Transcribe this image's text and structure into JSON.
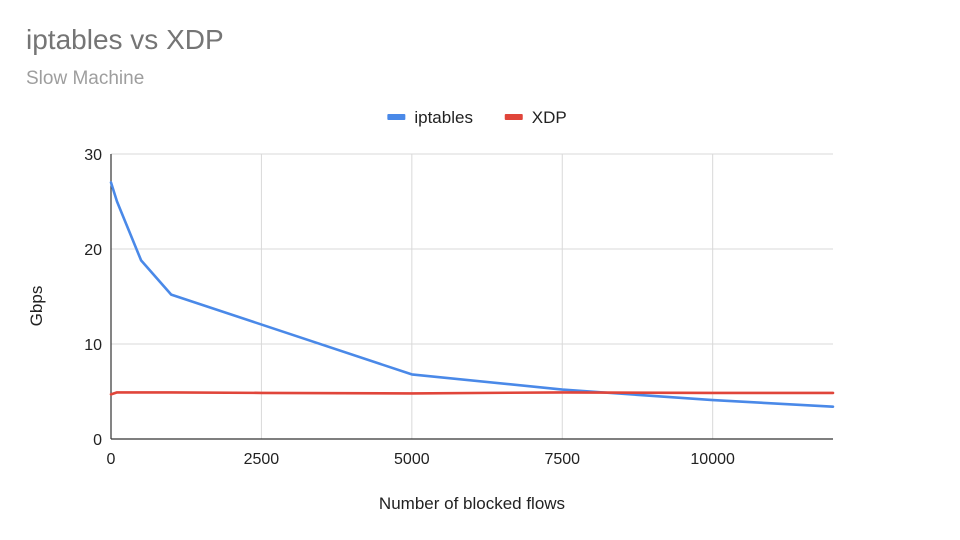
{
  "chart_data": {
    "type": "line",
    "title": "iptables vs XDP",
    "subtitle": "Slow Machine",
    "xlabel": "Number of blocked flows",
    "ylabel": "Gbps",
    "xlim": [
      0,
      12000
    ],
    "ylim": [
      0,
      30
    ],
    "xticks": [
      0,
      2500,
      5000,
      7500,
      10000
    ],
    "yticks": [
      0,
      10,
      20,
      30
    ],
    "grid": true,
    "legend": "top-center",
    "series": [
      {
        "name": "iptables",
        "color": "#4a89e8",
        "x": [
          0,
          100,
          500,
          1000,
          5000,
          7500,
          10000,
          12000
        ],
        "y": [
          27,
          25,
          18.8,
          15.2,
          6.8,
          5.2,
          4.1,
          3.4
        ]
      },
      {
        "name": "XDP",
        "color": "#e0453a",
        "x": [
          0,
          100,
          500,
          1000,
          2500,
          5000,
          7500,
          10000,
          12000
        ],
        "y": [
          4.7,
          4.9,
          4.9,
          4.9,
          4.85,
          4.8,
          4.9,
          4.85,
          4.85
        ]
      }
    ]
  }
}
